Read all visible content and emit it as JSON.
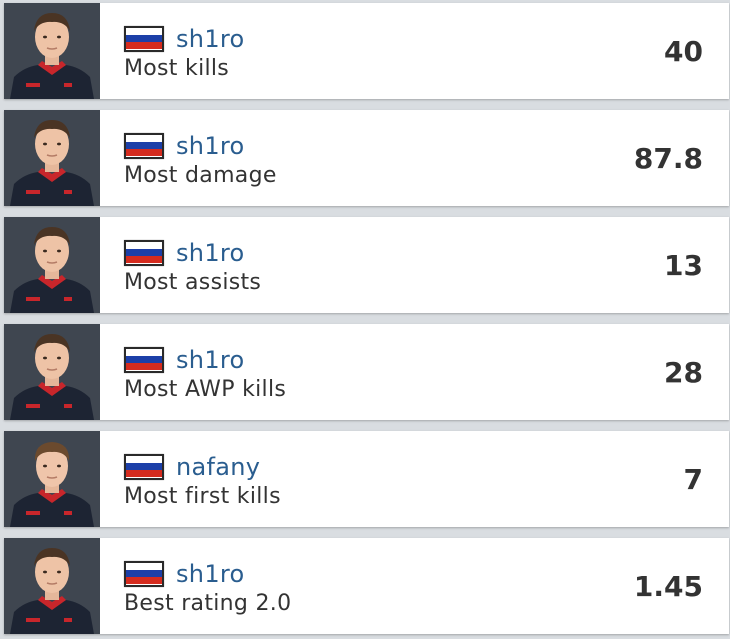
{
  "colors": {
    "accent": "#2a5d8f",
    "text": "#333333",
    "background": "#d9dde1",
    "card": "#ffffff",
    "photo_bg": "#3f4650",
    "jersey_dark": "#1d2433",
    "jersey_red": "#c8262b",
    "flag_white": "#ffffff",
    "flag_blue": "#1c3fa8",
    "flag_red": "#d52b1e"
  },
  "stats": [
    {
      "player": "sh1ro",
      "country_flag": "russia-flag-icon",
      "label": "Most kills",
      "value": "40"
    },
    {
      "player": "sh1ro",
      "country_flag": "russia-flag-icon",
      "label": "Most damage",
      "value": "87.8"
    },
    {
      "player": "sh1ro",
      "country_flag": "russia-flag-icon",
      "label": "Most assists",
      "value": "13"
    },
    {
      "player": "sh1ro",
      "country_flag": "russia-flag-icon",
      "label": "Most AWP kills",
      "value": "28"
    },
    {
      "player": "nafany",
      "country_flag": "russia-flag-icon",
      "label": "Most first kills",
      "value": "7"
    },
    {
      "player": "sh1ro",
      "country_flag": "russia-flag-icon",
      "label": "Best rating 2.0",
      "value": "1.45"
    }
  ]
}
